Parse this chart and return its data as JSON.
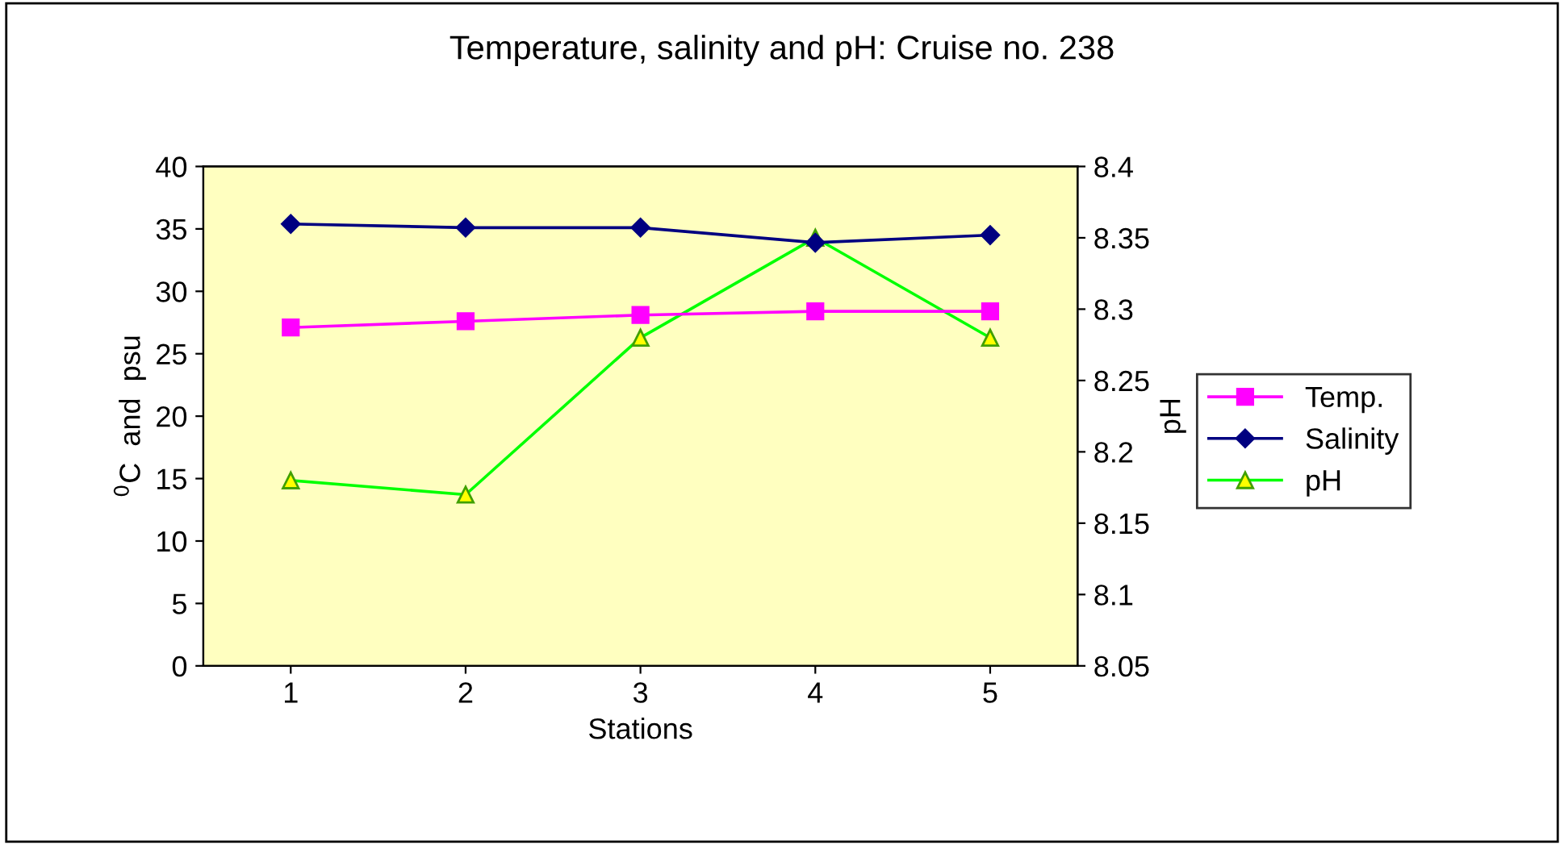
{
  "chart_data": {
    "type": "line",
    "title": "Temperature, salinity and pH: Cruise no. 238",
    "xlabel": "Stations",
    "ylabel": "$^{0}$C  and  psu",
    "y2label": "pH",
    "categories": [
      "1",
      "2",
      "3",
      "4",
      "5"
    ],
    "series": [
      {
        "name": "Temp.",
        "color": "#ff00ff",
        "marker": "square",
        "values": [
          27.1,
          27.6,
          28.1,
          28.4,
          28.4
        ]
      },
      {
        "name": "Salinity",
        "color": "#000080",
        "marker": "diamond",
        "values": [
          35.4,
          35.1,
          35.1,
          33.9,
          34.5
        ]
      },
      {
        "name": "pH",
        "color": "#00ff00",
        "marker": "triangle",
        "axis": "y2",
        "values": [
          8.18,
          8.17,
          8.28,
          8.35,
          8.28
        ]
      }
    ],
    "ylim": [
      0,
      40
    ],
    "yticks": [
      0,
      5,
      10,
      15,
      20,
      25,
      30,
      35,
      40
    ],
    "y2lim": [
      8.05,
      8.4
    ],
    "y2ticks": [
      8.05,
      8.1,
      8.15,
      8.2,
      8.25,
      8.3,
      8.35,
      8.4
    ],
    "grid": false,
    "legend": "right",
    "line_style": "solid"
  }
}
